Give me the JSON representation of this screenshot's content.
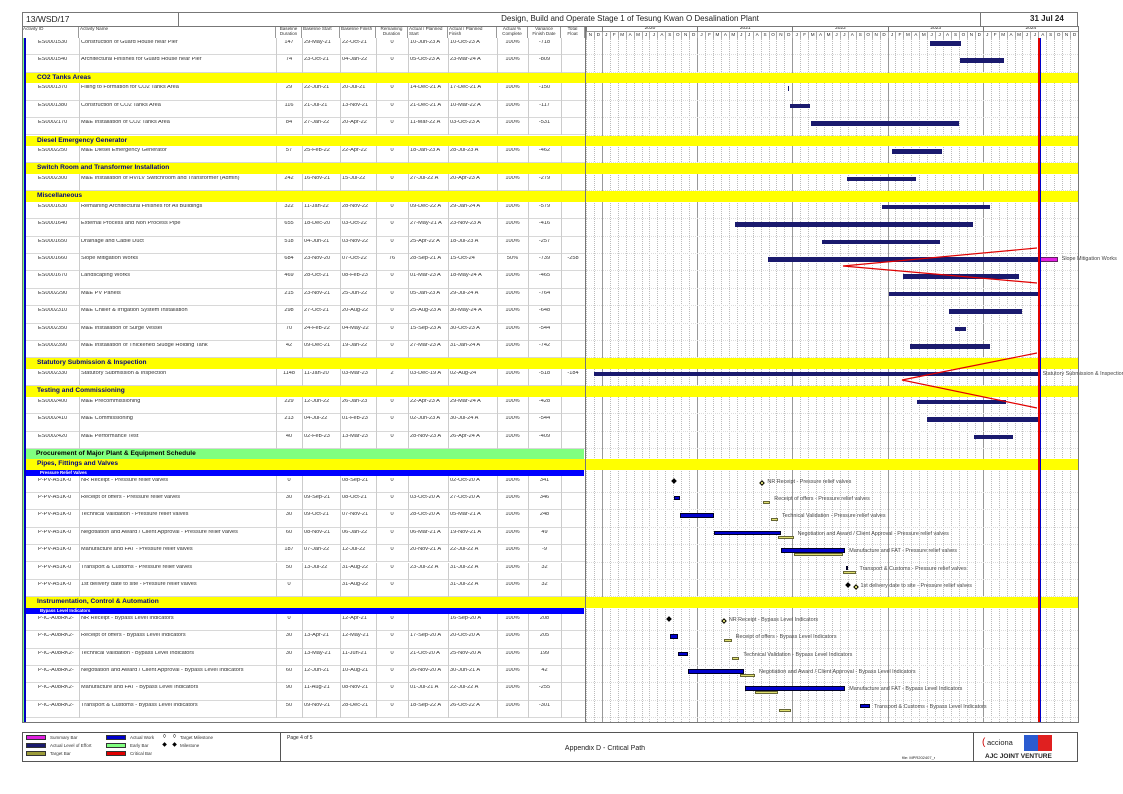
{
  "header": {
    "contract_no": "13/WSD/17",
    "title": "Design, Build and Operate Stage 1 of Tesung Kwan O Desalination Plant",
    "data_date": "31 Jul 24"
  },
  "columns": [
    "Activity ID",
    "Activity Name",
    "Baseline Duration",
    "Baseline Start",
    "Baseline Finish",
    "Remaining Duration",
    "Actual / Planned Start",
    "Actual / Planned Finish",
    "Actual % Complete",
    "Variance Finish Date",
    "Total Float"
  ],
  "timeline": {
    "years": [
      {
        "label": "",
        "months": [
          "N",
          "D"
        ]
      },
      {
        "label": "2020",
        "months": [
          "J",
          "F",
          "M",
          "A",
          "M",
          "J",
          "J",
          "A",
          "S",
          "O",
          "N",
          "D"
        ]
      },
      {
        "label": "2021",
        "months": [
          "J",
          "F",
          "M",
          "A",
          "M",
          "J",
          "J",
          "A",
          "S",
          "O",
          "N",
          "D"
        ]
      },
      {
        "label": "2022",
        "months": [
          "J",
          "F",
          "M",
          "A",
          "M",
          "J",
          "J",
          "A",
          "S",
          "O",
          "N",
          "D"
        ]
      },
      {
        "label": "2023",
        "months": [
          "J",
          "F",
          "M",
          "A",
          "M",
          "J",
          "J",
          "A",
          "S",
          "O",
          "N",
          "D"
        ]
      },
      {
        "label": "2024",
        "months": [
          "J",
          "F",
          "M",
          "A",
          "M",
          "J",
          "J",
          "A",
          "S",
          "O",
          "N",
          "D"
        ]
      }
    ],
    "data_date_value": "31-Jul-24"
  },
  "colors": {
    "section": "#ffff00",
    "group": "#80ff80",
    "subgroup": "#0000ff",
    "actual_level_of_effort": "#1a1a6e",
    "actual_work": "#0000cc",
    "target_bar": "#9c9c3a",
    "critical": "#e00000",
    "summary": "#e020e0"
  },
  "rows": [
    {
      "type": "activity",
      "id": "ES0001530",
      "name": "Construction of Guard House near Pier",
      "bdur": "147",
      "bstart": "29-May-21",
      "bfinish": "22-Oct-21",
      "rdur": "0",
      "astart": "10-Jun-23 A",
      "afinish": "10-Oct-23 A",
      "pct": "100%",
      "var": "-718",
      "tf": ""
    },
    {
      "type": "activity",
      "id": "ES0001540",
      "name": "Architectural Finishes for Guard House near Pier",
      "bdur": "74",
      "bstart": "23-Oct-21",
      "bfinish": "04-Jan-22",
      "rdur": "0",
      "astart": "05-Oct-23 A",
      "afinish": "23-Mar-24 A",
      "pct": "100%",
      "var": "-809",
      "tf": ""
    },
    {
      "type": "section",
      "label": "CO2 Tanks Areas"
    },
    {
      "type": "activity",
      "id": "ES0001370",
      "name": "Filling to Formation for CO2 Tanks Area",
      "bdur": "29",
      "bstart": "22-Jun-21",
      "bfinish": "20-Jul-21",
      "rdur": "0",
      "astart": "14-Dec-21 A",
      "afinish": "17-Dec-21 A",
      "pct": "100%",
      "var": "-150",
      "tf": ""
    },
    {
      "type": "activity",
      "id": "ES0001380",
      "name": "Construction of CO2 Tanks Area",
      "bdur": "116",
      "bstart": "21-Jul-21",
      "bfinish": "13-Nov-21",
      "rdur": "0",
      "astart": "21-Dec-21 A",
      "afinish": "10-Mar-22 A",
      "pct": "100%",
      "var": "-117",
      "tf": ""
    },
    {
      "type": "activity",
      "id": "ES0002170",
      "name": "M&E Installation of CO2 Tanks Area",
      "bdur": "84",
      "bstart": "27-Jan-22",
      "bfinish": "20-Apr-22",
      "rdur": "0",
      "astart": "11-Mar-22 A",
      "afinish": "03-Oct-23 A",
      "pct": "100%",
      "var": "-531",
      "tf": ""
    },
    {
      "type": "section",
      "label": "Diesel Emergency Generator"
    },
    {
      "type": "activity",
      "id": "ES0002250",
      "name": "M&E Diesel Emergency Generator",
      "bdur": "57",
      "bstart": "25-Feb-22",
      "bfinish": "22-Apr-22",
      "rdur": "0",
      "astart": "18-Jan-23 A",
      "afinish": "28-Jul-23 A",
      "pct": "100%",
      "var": "-462",
      "tf": ""
    },
    {
      "type": "section",
      "label": "Switch Room and Transformer Installation"
    },
    {
      "type": "activity",
      "id": "ES0002300",
      "name": "M&E Installation of HV/LV Switchroom and Transformer (Admin)",
      "bdur": "242",
      "bstart": "16-Nov-21",
      "bfinish": "15-Jul-22",
      "rdur": "0",
      "astart": "27-Jul-22 A",
      "afinish": "20-Apr-23 A",
      "pct": "100%",
      "var": "-279",
      "tf": ""
    },
    {
      "type": "section",
      "label": "Miscellaneous"
    },
    {
      "type": "activity",
      "id": "ES0001630",
      "name": "Remaining Architectural Finishes for All Buildings",
      "bdur": "322",
      "bstart": "11-Jan-22",
      "bfinish": "28-Nov-22",
      "rdur": "0",
      "astart": "09-Dec-22 A",
      "afinish": "29-Jan-24 A",
      "pct": "100%",
      "var": "-579",
      "tf": ""
    },
    {
      "type": "activity",
      "id": "ES0001640",
      "name": "External Process and Non Process Pipe",
      "bdur": "655",
      "bstart": "18-Dec-20",
      "bfinish": "03-Oct-22",
      "rdur": "0",
      "astart": "27-May-21 A",
      "afinish": "23-Nov-23 A",
      "pct": "100%",
      "var": "-416",
      "tf": ""
    },
    {
      "type": "activity",
      "id": "ES0001650",
      "name": "Drainage and Cable Duct",
      "bdur": "518",
      "bstart": "04-Jun-21",
      "bfinish": "03-Nov-22",
      "rdur": "0",
      "astart": "25-Apr-22 A",
      "afinish": "18-Jul-23 A",
      "pct": "100%",
      "var": "-257",
      "tf": ""
    },
    {
      "type": "activity",
      "id": "ES0001660",
      "name": "Slope Mitigation Works",
      "bdur": "684",
      "bstart": "23-Nov-20",
      "bfinish": "07-Oct-22",
      "rdur": "76",
      "astart": "28-Sep-21 A",
      "afinish": "15-Oct-24",
      "pct": "50%",
      "var": "-739",
      "tf": "-258"
    },
    {
      "type": "activity",
      "id": "ES0001670",
      "name": "Landscaping Works",
      "bdur": "469",
      "bstart": "28-Oct-21",
      "bfinish": "08-Feb-23",
      "rdur": "0",
      "astart": "01-Mar-23 A",
      "afinish": "18-May-24 A",
      "pct": "100%",
      "var": "-465",
      "tf": ""
    },
    {
      "type": "activity",
      "id": "ES0002290",
      "name": "M&E PV Panels",
      "bdur": "215",
      "bstart": "23-Nov-21",
      "bfinish": "25-Jun-22",
      "rdur": "0",
      "astart": "05-Jan-23 A",
      "afinish": "29-Jul-24 A",
      "pct": "100%",
      "var": "-764",
      "tf": ""
    },
    {
      "type": "activity",
      "id": "ES0002310",
      "name": "M&E Chiller & Irrigation System Installation",
      "bdur": "298",
      "bstart": "27-Oct-21",
      "bfinish": "20-Aug-22",
      "rdur": "0",
      "astart": "25-Aug-23 A",
      "afinish": "30-May-24 A",
      "pct": "100%",
      "var": "-648",
      "tf": ""
    },
    {
      "type": "activity",
      "id": "ES0002350",
      "name": "M&E Installation of Surge Vessel",
      "bdur": "70",
      "bstart": "24-Feb-22",
      "bfinish": "04-May-22",
      "rdur": "0",
      "astart": "15-Sep-23 A",
      "afinish": "30-Oct-23 A",
      "pct": "100%",
      "var": "-544",
      "tf": ""
    },
    {
      "type": "activity",
      "id": "ES0002390",
      "name": "M&E Installation of Thickened Sludge Holding Tank",
      "bdur": "42",
      "bstart": "09-Dec-21",
      "bfinish": "19-Jan-22",
      "rdur": "0",
      "astart": "27-Mar-23 A",
      "afinish": "31-Jan-24 A",
      "pct": "100%",
      "var": "-742",
      "tf": ""
    },
    {
      "type": "section",
      "label": "Statutory Submission & Inspection"
    },
    {
      "type": "activity",
      "id": "ES0002330",
      "name": "Statutory Submission & Inspection",
      "bdur": "1148",
      "bstart": "11-Jan-20",
      "bfinish": "03-Mar-23",
      "rdur": "2",
      "astart": "03-Dec-19 A",
      "afinish": "02-Aug-24",
      "pct": "100%",
      "var": "-518",
      "tf": "-184"
    },
    {
      "type": "section",
      "label": "Testing and Commissioning"
    },
    {
      "type": "activity",
      "id": "ES0002400",
      "name": "M&E Precommissioning",
      "bdur": "229",
      "bstart": "12-Jun-22",
      "bfinish": "26-Jan-23",
      "rdur": "0",
      "astart": "22-Apr-23 A",
      "afinish": "29-Mar-24 A",
      "pct": "100%",
      "var": "-428",
      "tf": ""
    },
    {
      "type": "activity",
      "id": "ES0002410",
      "name": "M&E Commissioning",
      "bdur": "213",
      "bstart": "04-Jul-22",
      "bfinish": "01-Feb-23",
      "rdur": "0",
      "astart": "02-Jun-23 A",
      "afinish": "30-Jul-24 A",
      "pct": "100%",
      "var": "-544",
      "tf": ""
    },
    {
      "type": "activity",
      "id": "ES0002420",
      "name": "M&E Performance Test",
      "bdur": "40",
      "bstart": "02-Feb-23",
      "bfinish": "13-Mar-23",
      "rdur": "0",
      "astart": "28-Nov-23 A",
      "afinish": "26-Apr-24 A",
      "pct": "100%",
      "var": "-409",
      "tf": ""
    },
    {
      "type": "group",
      "label": "Procurement of Major Plant & Equipment Schedule"
    },
    {
      "type": "section",
      "label": "Pipes, Fittings and Valves"
    },
    {
      "type": "subgroup",
      "label": "Pressure Relief Valves"
    },
    {
      "type": "activity",
      "proc": true,
      "id": "P-PV-A51K-0",
      "name": "NR Receipt - Pressure relief valves",
      "bdur": "0",
      "bstart": "",
      "bfinish": "08-Sep-21",
      "rdur": "0",
      "astart": "",
      "afinish": "02-Oct-20 A",
      "pct": "100%",
      "var": "341",
      "tf": ""
    },
    {
      "type": "activity",
      "proc": true,
      "id": "P-PV-A51K-0",
      "name": "Receipt of offers - Pressure relief valves",
      "bdur": "30",
      "bstart": "09-Sep-21",
      "bfinish": "08-Oct-21",
      "rdur": "0",
      "astart": "03-Oct-20 A",
      "afinish": "27-Oct-20 A",
      "pct": "100%",
      "var": "346",
      "tf": ""
    },
    {
      "type": "activity",
      "proc": true,
      "id": "P-PV-A51K-0",
      "name": "Technical Validation - Pressure relief valves",
      "bdur": "30",
      "bstart": "09-Oct-21",
      "bfinish": "07-Nov-21",
      "rdur": "0",
      "astart": "28-Oct-20 A",
      "afinish": "05-Mar-21 A",
      "pct": "100%",
      "var": "248",
      "tf": ""
    },
    {
      "type": "activity",
      "proc": true,
      "id": "P-PV-A51K-0",
      "name": "Negotiation and Award / Client Approval - Pressure relief valves",
      "bdur": "60",
      "bstart": "08-Nov-21",
      "bfinish": "06-Jan-22",
      "rdur": "0",
      "astart": "06-Mar-21 A",
      "afinish": "19-Nov-21 A",
      "pct": "100%",
      "var": "49",
      "tf": ""
    },
    {
      "type": "activity",
      "proc": true,
      "id": "P-PV-A51K-0",
      "name": "Manufacture and FAT - Pressure relief valves",
      "bdur": "187",
      "bstart": "07-Jan-22",
      "bfinish": "12-Jul-22",
      "rdur": "0",
      "astart": "20-Nov-21 A",
      "afinish": "22-Jul-22 A",
      "pct": "100%",
      "var": "-9",
      "tf": ""
    },
    {
      "type": "activity",
      "proc": true,
      "id": "P-PV-A51K-0",
      "name": "Transport & Customs - Pressure relief valves",
      "bdur": "50",
      "bstart": "13-Jul-22",
      "bfinish": "31-Aug-22",
      "rdur": "0",
      "astart": "23-Jul-22 A",
      "afinish": "31-Jul-22 A",
      "pct": "100%",
      "var": "32",
      "tf": ""
    },
    {
      "type": "activity",
      "proc": true,
      "id": "P-PV-A51K-0",
      "name": "1st delivery date to site - Pressure relief valves",
      "bdur": "0",
      "bstart": "",
      "bfinish": "31-Aug-22",
      "rdur": "0",
      "astart": "",
      "afinish": "31-Jul-22 A",
      "pct": "100%",
      "var": "32",
      "tf": ""
    },
    {
      "type": "section",
      "label": "Instrumentation, Control & Automation"
    },
    {
      "type": "subgroup",
      "label": "Bypass Level Indicators"
    },
    {
      "type": "activity",
      "proc": true,
      "id": "P-IC-A08RK2-",
      "name": "NR Receipt - Bypass Level Indicators",
      "bdur": "0",
      "bstart": "",
      "bfinish": "12-Apr-21",
      "rdur": "0",
      "astart": "",
      "afinish": "16-Sep-20 A",
      "pct": "100%",
      "var": "208",
      "tf": ""
    },
    {
      "type": "activity",
      "proc": true,
      "id": "P-IC-A08RK2-",
      "name": "Receipt of offers - Bypass Level Indicators",
      "bdur": "30",
      "bstart": "13-Apr-21",
      "bfinish": "12-May-21",
      "rdur": "0",
      "astart": "17-Sep-20 A",
      "afinish": "20-Oct-20 A",
      "pct": "100%",
      "var": "205",
      "tf": ""
    },
    {
      "type": "activity",
      "proc": true,
      "id": "P-IC-A08RK2-",
      "name": "Technical Validation - Bypass Level Indicators",
      "bdur": "30",
      "bstart": "13-May-21",
      "bfinish": "11-Jun-21",
      "rdur": "0",
      "astart": "21-Oct-20 A",
      "afinish": "25-Nov-20 A",
      "pct": "100%",
      "var": "199",
      "tf": ""
    },
    {
      "type": "activity",
      "proc": true,
      "id": "P-IC-A08RK2-",
      "name": "Negotiation and Award / Client Approval - Bypass Level Indicators",
      "bdur": "60",
      "bstart": "12-Jun-21",
      "bfinish": "10-Aug-21",
      "rdur": "0",
      "astart": "26-Nov-20 A",
      "afinish": "30-Jun-21 A",
      "pct": "100%",
      "var": "42",
      "tf": ""
    },
    {
      "type": "activity",
      "proc": true,
      "id": "P-IC-A08RK2-",
      "name": "Manufacture and FAT - Bypass Level Indicators",
      "bdur": "90",
      "bstart": "11-Aug-21",
      "bfinish": "08-Nov-21",
      "rdur": "0",
      "astart": "01-Jul-21 A",
      "afinish": "22-Jul-22 A",
      "pct": "100%",
      "var": "-255",
      "tf": ""
    },
    {
      "type": "activity",
      "proc": true,
      "id": "P-IC-A08RK2-",
      "name": "Transport & Customs - Bypass Level Indicators",
      "bdur": "50",
      "bstart": "09-Nov-21",
      "bfinish": "28-Dec-21",
      "rdur": "0",
      "astart": "18-Sep-22 A",
      "afinish": "26-Oct-22 A",
      "pct": "100%",
      "var": "-301",
      "tf": ""
    }
  ],
  "legend": [
    {
      "label": "Summary Bar",
      "color": "#e020e0"
    },
    {
      "label": "Actual Level of Effort",
      "color": "#1a1a6e"
    },
    {
      "label": "Target Bar",
      "color": "#9c9c3a"
    },
    {
      "label": "Actual Work",
      "color": "#0000cc"
    },
    {
      "label": "Early Bar",
      "color": "#80ff80"
    },
    {
      "label": "Critical Bar",
      "color": "#e00000"
    },
    {
      "label": "Target Milestone",
      "icon": "open-diamond"
    },
    {
      "label": "Milestone",
      "icon": "filled-diamond"
    }
  ],
  "footer": {
    "page": "Page 4 of 5",
    "report_title": "Appendix D - Critical Path",
    "file": "file: MPR202407_r",
    "logo_text": "acciona",
    "jv_name": "AJC JOINT VENTURE"
  }
}
